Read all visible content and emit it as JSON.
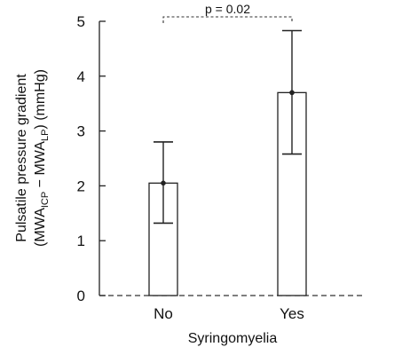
{
  "chart_data": {
    "type": "bar",
    "title": "",
    "xlabel": "Syringomyelia",
    "ylabel": {
      "line1": "Pulsatile pressure gradient",
      "line2_prefix": "(MWA",
      "sub1": "ICP",
      "line2_mid": " − MWA",
      "sub2": "LP",
      "line2_suffix": ") (mmHg)"
    },
    "ylim": [
      0,
      5
    ],
    "yticks": [
      "0",
      "1",
      "2",
      "3",
      "4",
      "5"
    ],
    "categories": [
      "No",
      "Yes"
    ],
    "values": [
      2.05,
      3.7
    ],
    "error_low": [
      1.32,
      2.58
    ],
    "error_high": [
      2.8,
      4.83
    ],
    "annotation": {
      "text": "p = 0.02",
      "between": [
        "No",
        "Yes"
      ]
    },
    "baseline_style": "dashed",
    "grid": false
  }
}
